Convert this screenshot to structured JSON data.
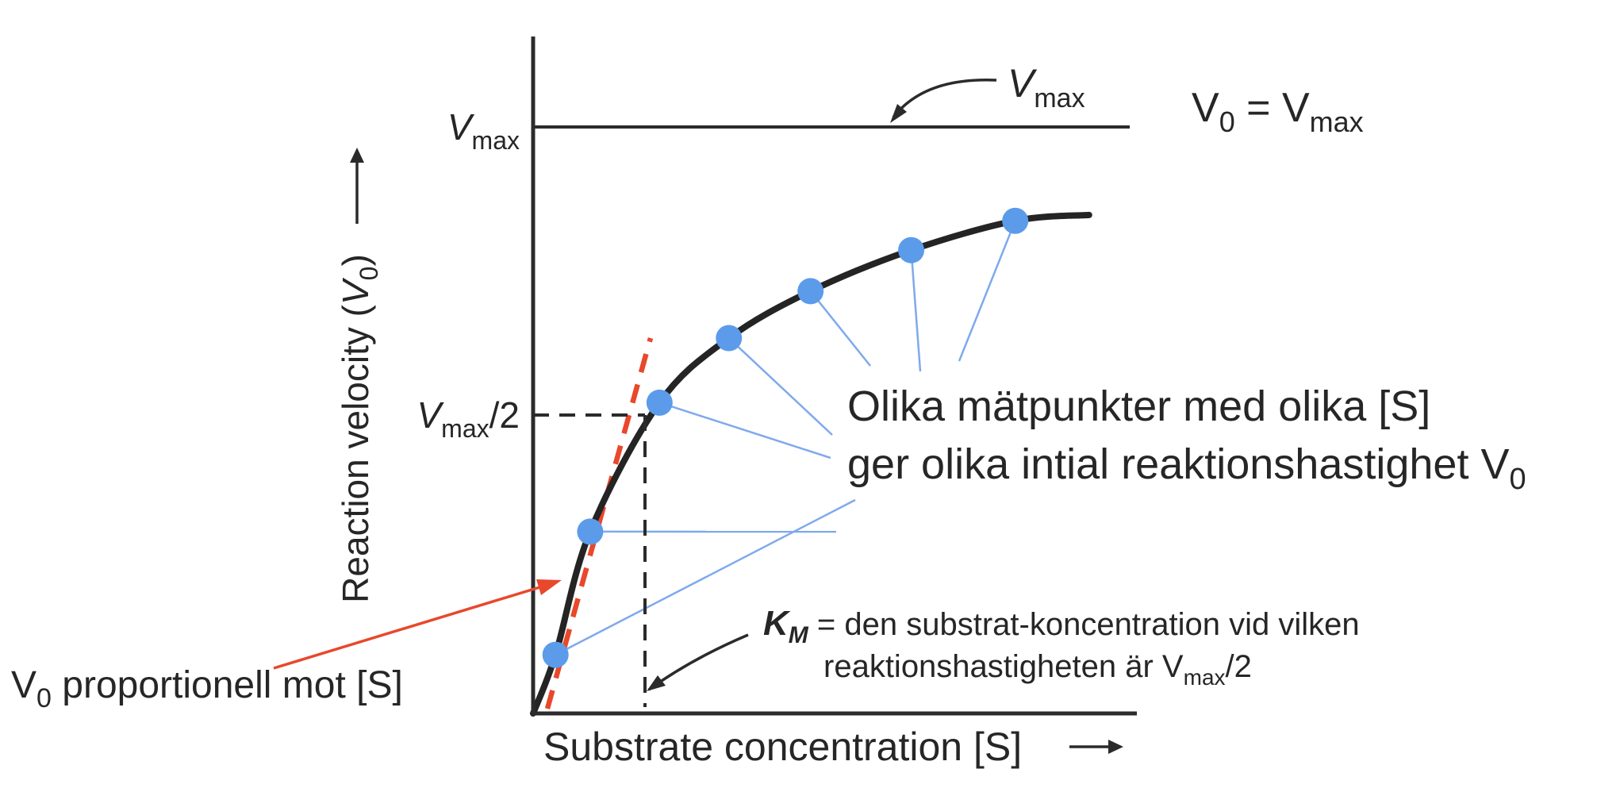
{
  "figure": {
    "description": "Michaelis-Menten enzyme kinetics saturation curve with Swedish annotations"
  },
  "labels": {
    "y_axis": {
      "pre": "Reaction velocity (",
      "base": "V",
      "sub": "0",
      "post": ")"
    },
    "x_axis": {
      "text": "Substrate concentration [S]"
    },
    "vmax_tick": {
      "base": "V",
      "sub": "max"
    },
    "vmax_half_tick": {
      "base": "V",
      "sub": "max",
      "post": "/2"
    },
    "vmax_callout": {
      "base": "V",
      "sub": "max"
    },
    "v0_eq_vmax": {
      "base": "V",
      "sub": "0",
      "mid": " = V",
      "sub2": "max"
    },
    "v0_proportional": {
      "base": "V",
      "sub": "0",
      "rest": " proportionell mot [S]"
    },
    "blue_note": {
      "line1": "Olika mätpunkter med olika [S]",
      "line2_pre": "ger olika intial reaktionshastighet V",
      "line2_sub": "0"
    },
    "km_note": {
      "k": "K",
      "k_sub": "M",
      "line1_rest": " = den substrat-koncentration vid vilken",
      "line2_pre": "reaktionshastigheten är V",
      "line2_sub": "max",
      "line2_post": "/2"
    }
  },
  "colors": {
    "curve": "#242424",
    "axis": "#2b2b2b",
    "points": "#5B9BEA",
    "leader_lines": "#7FA9ED",
    "note_blue": "#6B9CE9",
    "vmax_callout_blue": "#1FA4E6",
    "tangent_red": "#E8482B",
    "text_black": "#262626"
  },
  "chart_data": {
    "type": "line",
    "title": "",
    "xlabel": "Substrate concentration [S]",
    "ylabel": "Reaction velocity (V0)",
    "x_units": "substrate concentration in multiples of KM (axis unlabeled, qualitative)",
    "y_units": "initial velocity V0 as fraction of Vmax (axis unlabeled, qualitative)",
    "curve_description": "Michaelis-Menten hyperbolic saturation curve: V0 = Vmax[S]/(KM+[S])",
    "curve_anchor_points": {
      "s_over_Km": [
        0,
        0.2,
        0.51,
        1.13,
        1.75,
        2.48,
        3.38,
        4.31,
        4.97
      ],
      "v0_over_Vmax": [
        0,
        0.1,
        0.31,
        0.53,
        0.64,
        0.72,
        0.79,
        0.84,
        0.85
      ]
    },
    "measurement_points": {
      "s_over_Km": [
        0.2,
        0.51,
        1.13,
        1.75,
        2.48,
        3.38,
        4.31
      ],
      "v0_over_Vmax": [
        0.1,
        0.31,
        0.53,
        0.64,
        0.72,
        0.79,
        0.84
      ]
    },
    "reference_lines": {
      "vmax_asymptote": {
        "v0_over_Vmax": 1.0,
        "label": "Vmax"
      },
      "half_vmax": {
        "v0_over_Vmax": 0.5,
        "s_over_Km": 1.0,
        "label": "Vmax/2",
        "style": "dashed"
      },
      "initial_tangent": {
        "label": "V0 proportionell mot [S]",
        "style": "red dashed"
      }
    },
    "legend_position": "none",
    "grid": false
  }
}
